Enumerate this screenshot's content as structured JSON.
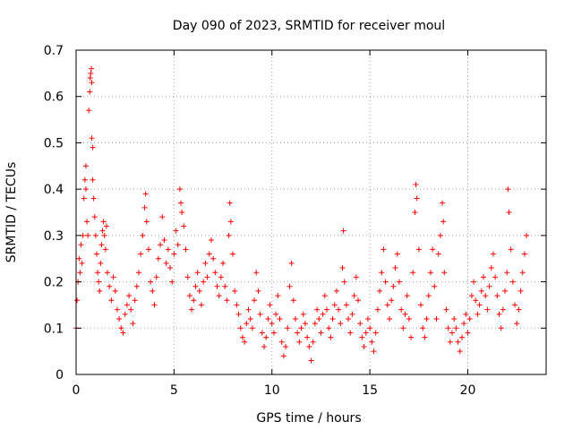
{
  "chart_data": {
    "type": "scatter",
    "title": "Day 090 of 2023, SRMTID for receiver moul",
    "xlabel": "GPS time / hours",
    "ylabel": "SRMTID / TECUs",
    "xlim": [
      0,
      24
    ],
    "ylim": [
      0,
      0.7
    ],
    "xticks": [
      0,
      5,
      10,
      15,
      20
    ],
    "xtick_labels": [
      "0",
      "5",
      "10",
      "15",
      "20"
    ],
    "yticks": [
      0,
      0.1,
      0.2,
      0.3,
      0.4,
      0.5,
      0.6,
      0.7
    ],
    "ytick_labels": [
      "0",
      "0.1",
      "0.2",
      "0.3",
      "0.4",
      "0.5",
      "0.6",
      "0.7"
    ],
    "grid": true,
    "marker": "plus",
    "marker_color": "#ff0000",
    "series": [
      {
        "name": "SRMTID",
        "points": [
          [
            0.0,
            0.1
          ],
          [
            0.05,
            0.16
          ],
          [
            0.1,
            0.2
          ],
          [
            0.15,
            0.25
          ],
          [
            0.2,
            0.22
          ],
          [
            0.25,
            0.28
          ],
          [
            0.3,
            0.24
          ],
          [
            0.35,
            0.3
          ],
          [
            0.4,
            0.38
          ],
          [
            0.45,
            0.42
          ],
          [
            0.5,
            0.45
          ],
          [
            0.5,
            0.4
          ],
          [
            0.55,
            0.33
          ],
          [
            0.6,
            0.3
          ],
          [
            0.65,
            0.57
          ],
          [
            0.7,
            0.61
          ],
          [
            0.72,
            0.64
          ],
          [
            0.75,
            0.65
          ],
          [
            0.78,
            0.66
          ],
          [
            0.8,
            0.63
          ],
          [
            0.8,
            0.51
          ],
          [
            0.85,
            0.49
          ],
          [
            0.85,
            0.42
          ],
          [
            0.9,
            0.38
          ],
          [
            0.95,
            0.34
          ],
          [
            1.0,
            0.3
          ],
          [
            1.05,
            0.26
          ],
          [
            1.1,
            0.22
          ],
          [
            1.15,
            0.2
          ],
          [
            1.2,
            0.18
          ],
          [
            1.25,
            0.24
          ],
          [
            1.3,
            0.28
          ],
          [
            1.35,
            0.31
          ],
          [
            1.4,
            0.33
          ],
          [
            1.45,
            0.3
          ],
          [
            1.5,
            0.27
          ],
          [
            1.55,
            0.32
          ],
          [
            1.6,
            0.22
          ],
          [
            1.7,
            0.19
          ],
          [
            1.8,
            0.16
          ],
          [
            1.9,
            0.21
          ],
          [
            2.0,
            0.18
          ],
          [
            2.1,
            0.14
          ],
          [
            2.2,
            0.12
          ],
          [
            2.3,
            0.1
          ],
          [
            2.4,
            0.09
          ],
          [
            2.5,
            0.13
          ],
          [
            2.6,
            0.15
          ],
          [
            2.7,
            0.17
          ],
          [
            2.8,
            0.14
          ],
          [
            2.9,
            0.11
          ],
          [
            3.0,
            0.16
          ],
          [
            3.1,
            0.19
          ],
          [
            3.2,
            0.22
          ],
          [
            3.3,
            0.26
          ],
          [
            3.4,
            0.3
          ],
          [
            3.5,
            0.36
          ],
          [
            3.55,
            0.39
          ],
          [
            3.6,
            0.33
          ],
          [
            3.7,
            0.27
          ],
          [
            3.8,
            0.2
          ],
          [
            3.9,
            0.18
          ],
          [
            4.0,
            0.15
          ],
          [
            4.1,
            0.21
          ],
          [
            4.2,
            0.25
          ],
          [
            4.3,
            0.28
          ],
          [
            4.4,
            0.34
          ],
          [
            4.5,
            0.29
          ],
          [
            4.6,
            0.24
          ],
          [
            4.7,
            0.27
          ],
          [
            4.8,
            0.23
          ],
          [
            4.9,
            0.2
          ],
          [
            5.0,
            0.26
          ],
          [
            5.1,
            0.31
          ],
          [
            5.2,
            0.28
          ],
          [
            5.3,
            0.4
          ],
          [
            5.35,
            0.37
          ],
          [
            5.4,
            0.35
          ],
          [
            5.5,
            0.32
          ],
          [
            5.6,
            0.27
          ],
          [
            5.7,
            0.21
          ],
          [
            5.8,
            0.17
          ],
          [
            5.9,
            0.14
          ],
          [
            6.0,
            0.16
          ],
          [
            6.1,
            0.19
          ],
          [
            6.2,
            0.22
          ],
          [
            6.3,
            0.18
          ],
          [
            6.4,
            0.15
          ],
          [
            6.5,
            0.2
          ],
          [
            6.6,
            0.24
          ],
          [
            6.7,
            0.21
          ],
          [
            6.8,
            0.26
          ],
          [
            6.9,
            0.29
          ],
          [
            7.0,
            0.25
          ],
          [
            7.1,
            0.22
          ],
          [
            7.2,
            0.19
          ],
          [
            7.3,
            0.17
          ],
          [
            7.4,
            0.21
          ],
          [
            7.5,
            0.24
          ],
          [
            7.6,
            0.19
          ],
          [
            7.7,
            0.16
          ],
          [
            7.8,
            0.3
          ],
          [
            7.85,
            0.37
          ],
          [
            7.9,
            0.33
          ],
          [
            8.0,
            0.26
          ],
          [
            8.1,
            0.18
          ],
          [
            8.2,
            0.15
          ],
          [
            8.3,
            0.13
          ],
          [
            8.4,
            0.1
          ],
          [
            8.5,
            0.08
          ],
          [
            8.6,
            0.07
          ],
          [
            8.7,
            0.11
          ],
          [
            8.8,
            0.14
          ],
          [
            8.9,
            0.12
          ],
          [
            9.0,
            0.1
          ],
          [
            9.1,
            0.16
          ],
          [
            9.2,
            0.22
          ],
          [
            9.3,
            0.18
          ],
          [
            9.4,
            0.13
          ],
          [
            9.5,
            0.09
          ],
          [
            9.6,
            0.06
          ],
          [
            9.7,
            0.08
          ],
          [
            9.8,
            0.12
          ],
          [
            9.9,
            0.15
          ],
          [
            10.0,
            0.11
          ],
          [
            10.1,
            0.09
          ],
          [
            10.2,
            0.13
          ],
          [
            10.3,
            0.17
          ],
          [
            10.4,
            0.12
          ],
          [
            10.5,
            0.07
          ],
          [
            10.6,
            0.04
          ],
          [
            10.7,
            0.06
          ],
          [
            10.8,
            0.1
          ],
          [
            10.9,
            0.19
          ],
          [
            11.0,
            0.24
          ],
          [
            11.1,
            0.16
          ],
          [
            11.2,
            0.12
          ],
          [
            11.3,
            0.09
          ],
          [
            11.4,
            0.07
          ],
          [
            11.5,
            0.1
          ],
          [
            11.6,
            0.13
          ],
          [
            11.7,
            0.11
          ],
          [
            11.8,
            0.08
          ],
          [
            11.9,
            0.06
          ],
          [
            12.0,
            0.03
          ],
          [
            12.1,
            0.07
          ],
          [
            12.2,
            0.11
          ],
          [
            12.3,
            0.14
          ],
          [
            12.4,
            0.12
          ],
          [
            12.5,
            0.09
          ],
          [
            12.6,
            0.13
          ],
          [
            12.7,
            0.17
          ],
          [
            12.8,
            0.14
          ],
          [
            12.9,
            0.1
          ],
          [
            13.0,
            0.08
          ],
          [
            13.1,
            0.12
          ],
          [
            13.2,
            0.15
          ],
          [
            13.3,
            0.18
          ],
          [
            13.4,
            0.14
          ],
          [
            13.5,
            0.11
          ],
          [
            13.6,
            0.23
          ],
          [
            13.65,
            0.31
          ],
          [
            13.7,
            0.2
          ],
          [
            13.8,
            0.15
          ],
          [
            13.9,
            0.12
          ],
          [
            14.0,
            0.09
          ],
          [
            14.1,
            0.13
          ],
          [
            14.2,
            0.17
          ],
          [
            14.3,
            0.21
          ],
          [
            14.4,
            0.16
          ],
          [
            14.5,
            0.11
          ],
          [
            14.6,
            0.08
          ],
          [
            14.7,
            0.06
          ],
          [
            14.8,
            0.09
          ],
          [
            14.9,
            0.12
          ],
          [
            15.0,
            0.1
          ],
          [
            15.1,
            0.07
          ],
          [
            15.2,
            0.05
          ],
          [
            15.3,
            0.09
          ],
          [
            15.4,
            0.14
          ],
          [
            15.5,
            0.18
          ],
          [
            15.6,
            0.22
          ],
          [
            15.7,
            0.27
          ],
          [
            15.8,
            0.2
          ],
          [
            15.9,
            0.15
          ],
          [
            16.0,
            0.12
          ],
          [
            16.1,
            0.16
          ],
          [
            16.2,
            0.19
          ],
          [
            16.3,
            0.23
          ],
          [
            16.4,
            0.26
          ],
          [
            16.5,
            0.2
          ],
          [
            16.6,
            0.14
          ],
          [
            16.7,
            0.1
          ],
          [
            16.8,
            0.13
          ],
          [
            16.9,
            0.17
          ],
          [
            17.0,
            0.12
          ],
          [
            17.1,
            0.08
          ],
          [
            17.2,
            0.22
          ],
          [
            17.3,
            0.35
          ],
          [
            17.35,
            0.41
          ],
          [
            17.4,
            0.38
          ],
          [
            17.5,
            0.27
          ],
          [
            17.6,
            0.15
          ],
          [
            17.7,
            0.1
          ],
          [
            17.8,
            0.08
          ],
          [
            17.9,
            0.12
          ],
          [
            18.0,
            0.17
          ],
          [
            18.1,
            0.22
          ],
          [
            18.2,
            0.27
          ],
          [
            18.3,
            0.19
          ],
          [
            18.4,
            0.12
          ],
          [
            18.5,
            0.26
          ],
          [
            18.6,
            0.3
          ],
          [
            18.7,
            0.37
          ],
          [
            18.75,
            0.33
          ],
          [
            18.8,
            0.22
          ],
          [
            18.9,
            0.14
          ],
          [
            19.0,
            0.1
          ],
          [
            19.1,
            0.07
          ],
          [
            19.2,
            0.09
          ],
          [
            19.3,
            0.12
          ],
          [
            19.4,
            0.1
          ],
          [
            19.5,
            0.07
          ],
          [
            19.6,
            0.05
          ],
          [
            19.7,
            0.08
          ],
          [
            19.8,
            0.11
          ],
          [
            19.9,
            0.13
          ],
          [
            20.0,
            0.09
          ],
          [
            20.1,
            0.12
          ],
          [
            20.2,
            0.17
          ],
          [
            20.3,
            0.2
          ],
          [
            20.4,
            0.16
          ],
          [
            20.5,
            0.13
          ],
          [
            20.6,
            0.15
          ],
          [
            20.7,
            0.18
          ],
          [
            20.8,
            0.21
          ],
          [
            20.9,
            0.17
          ],
          [
            21.0,
            0.14
          ],
          [
            21.1,
            0.19
          ],
          [
            21.2,
            0.23
          ],
          [
            21.3,
            0.26
          ],
          [
            21.4,
            0.21
          ],
          [
            21.5,
            0.17
          ],
          [
            21.6,
            0.13
          ],
          [
            21.7,
            0.1
          ],
          [
            21.8,
            0.14
          ],
          [
            21.9,
            0.18
          ],
          [
            22.0,
            0.22
          ],
          [
            22.05,
            0.4
          ],
          [
            22.1,
            0.35
          ],
          [
            22.2,
            0.27
          ],
          [
            22.3,
            0.2
          ],
          [
            22.4,
            0.15
          ],
          [
            22.5,
            0.11
          ],
          [
            22.6,
            0.14
          ],
          [
            22.7,
            0.18
          ],
          [
            22.8,
            0.22
          ],
          [
            22.9,
            0.26
          ],
          [
            23.0,
            0.3
          ]
        ]
      }
    ]
  }
}
